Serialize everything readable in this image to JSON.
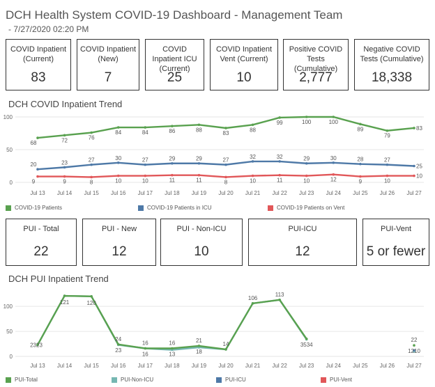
{
  "header": {
    "title": "DCH Health System COVID-19 Dashboard - Management Team",
    "timestamp": " - 7/27/2020 02:20 PM"
  },
  "kpis_top": [
    {
      "label": "COVID Inpatient (Current)",
      "value": "83"
    },
    {
      "label": "COVID Inpatient (New)",
      "value": "7"
    },
    {
      "label": "COVID Inpatient ICU (Current)",
      "value": "25"
    },
    {
      "label": "COVID Inpatient Vent (Current)",
      "value": "10"
    },
    {
      "label": "Positive COVID Tests (Cumulative)",
      "value": "2,777"
    },
    {
      "label": "Negative COVID Tests (Cumulative)",
      "value": "18,338"
    }
  ],
  "kpis_pui": [
    {
      "label": "PUI - Total",
      "value": "22"
    },
    {
      "label": "PUI - New",
      "value": "12"
    },
    {
      "label": "PUI - Non-ICU",
      "value": "10"
    },
    {
      "label": "PUI-ICU",
      "value": "12"
    },
    {
      "label": "PUI-Vent",
      "value": "5 or fewer"
    }
  ],
  "colors": {
    "green": "#59a14f",
    "blue": "#4e79a7",
    "red": "#e15759",
    "teal": "#76b7b2"
  },
  "chart_data": [
    {
      "type": "line",
      "title": "DCH COVID Inpatient Trend",
      "categories": [
        "Jul 13",
        "Jul 14",
        "Jul 15",
        "Jul 16",
        "Jul 17",
        "Jul 18",
        "Jul 19",
        "Jul 20",
        "Jul 21",
        "Jul 22",
        "Jul 23",
        "Jul 24",
        "Jul 25",
        "Jul 26",
        "Jul 27"
      ],
      "yticks": [
        "0",
        "50",
        "100"
      ],
      "ylim": [
        0,
        100
      ],
      "series": [
        {
          "name": "COVID-19 Patients",
          "color": "#59a14f",
          "values": [
            68,
            72,
            76,
            84,
            84,
            86,
            88,
            83,
            88,
            99,
            100,
            100,
            89,
            79,
            83
          ]
        },
        {
          "name": "COVID-19 Patients in ICU",
          "color": "#4e79a7",
          "values": [
            20,
            23,
            27,
            30,
            27,
            29,
            29,
            27,
            32,
            32,
            29,
            30,
            28,
            27,
            25
          ]
        },
        {
          "name": "COVID-19 Patients on Vent",
          "color": "#e15759",
          "values": [
            9,
            9,
            8,
            10,
            10,
            11,
            11,
            8,
            10,
            11,
            10,
            12,
            9,
            10,
            10
          ]
        }
      ]
    },
    {
      "type": "line",
      "title": "DCH PUI Inpatient Trend",
      "categories": [
        "Jul 13",
        "Jul 14",
        "Jul 15",
        "Jul 16",
        "Jul 17",
        "Jul 18",
        "Jul 19",
        "Jul 20",
        "Jul 21",
        "Jul 22",
        "Jul 23",
        "Jul 24",
        "Jul 25",
        "Jul 26",
        "Jul 27"
      ],
      "yticks": [
        "0",
        "50",
        "100"
      ],
      "ylim": [
        0,
        128
      ],
      "series": [
        {
          "name": "PUI-Total",
          "color": "#59a14f",
          "values": [
            23,
            121,
            120,
            24,
            16,
            16,
            21,
            14,
            106,
            113,
            35,
            null,
            null,
            null,
            22
          ]
        },
        {
          "name": "PUI-Non-ICU",
          "color": "#76b7b2",
          "values": [
            23,
            121,
            120,
            23,
            16,
            13,
            18,
            14,
            106,
            113,
            34,
            null,
            null,
            null,
            10
          ]
        },
        {
          "name": "PUI-ICU",
          "color": "#4e79a7",
          "values": [
            null,
            null,
            null,
            null,
            null,
            null,
            null,
            null,
            null,
            null,
            null,
            null,
            null,
            null,
            12
          ]
        },
        {
          "name": "PUI-Vent",
          "color": "#e15759",
          "values": [
            null,
            null,
            null,
            null,
            null,
            null,
            null,
            null,
            null,
            null,
            null,
            null,
            null,
            null,
            null
          ]
        }
      ],
      "labels": [
        {
          "x": 0,
          "text": "2323"
        },
        {
          "x": 1,
          "text": "121"
        },
        {
          "x": 2,
          "text": "120"
        },
        {
          "x": 3,
          "text": "24",
          "pos": "above"
        },
        {
          "x": 3,
          "text": "23",
          "pos": "below"
        },
        {
          "x": 4,
          "text": "16",
          "pos": "above"
        },
        {
          "x": 4,
          "text": "16",
          "pos": "below"
        },
        {
          "x": 5,
          "text": "16",
          "pos": "above"
        },
        {
          "x": 5,
          "text": "13",
          "pos": "below"
        },
        {
          "x": 6,
          "text": "21",
          "pos": "above"
        },
        {
          "x": 6,
          "text": "18",
          "pos": "below"
        },
        {
          "x": 7,
          "text": "14",
          "pos": "above"
        },
        {
          "x": 8,
          "text": "106",
          "pos": "above"
        },
        {
          "x": 9,
          "text": "113",
          "pos": "above"
        },
        {
          "x": 10,
          "text": "3534",
          "pos": "below"
        },
        {
          "x": 14,
          "text": "22",
          "pos": "above"
        },
        {
          "x": 14,
          "text": "1210",
          "pos": "below"
        }
      ]
    }
  ]
}
